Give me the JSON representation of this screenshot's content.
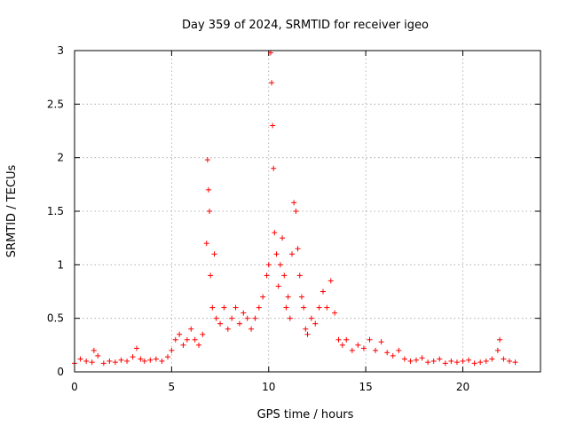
{
  "chart_data": {
    "type": "scatter",
    "title": "Day 359 of 2024, SRMTID for receiver igeo",
    "xlabel": "GPS time / hours",
    "ylabel": "SRMTID / TECUs",
    "xlim": [
      0,
      24
    ],
    "ylim": [
      0,
      3
    ],
    "xticks": [
      0,
      5,
      10,
      15,
      20
    ],
    "yticks": [
      0,
      0.5,
      1,
      1.5,
      2,
      2.5,
      3
    ],
    "xtick_labels": [
      "0",
      "5",
      "10",
      "15",
      "20"
    ],
    "ytick_labels": [
      "0",
      "0.5",
      "1",
      "1.5",
      "2",
      "2.5",
      "3"
    ],
    "grid": true,
    "marker": "+",
    "series": [
      {
        "name": "SRMTID",
        "color": "#ff0000",
        "x": [
          0.0,
          0.3,
          0.6,
          0.9,
          1.0,
          1.2,
          1.5,
          1.8,
          2.1,
          2.4,
          2.7,
          3.0,
          3.2,
          3.4,
          3.6,
          3.9,
          4.2,
          4.5,
          4.8,
          5.0,
          5.2,
          5.4,
          5.6,
          5.8,
          6.0,
          6.2,
          6.4,
          6.6,
          6.8,
          6.85,
          6.9,
          6.95,
          7.0,
          7.1,
          7.2,
          7.3,
          7.5,
          7.7,
          7.9,
          8.1,
          8.3,
          8.5,
          8.7,
          8.9,
          9.1,
          9.3,
          9.5,
          9.7,
          9.9,
          10.0,
          10.1,
          10.15,
          10.2,
          10.25,
          10.3,
          10.4,
          10.5,
          10.6,
          10.7,
          10.8,
          10.9,
          11.0,
          11.1,
          11.2,
          11.3,
          11.4,
          11.5,
          11.6,
          11.7,
          11.8,
          11.9,
          12.0,
          12.2,
          12.4,
          12.6,
          12.8,
          13.0,
          13.2,
          13.4,
          13.6,
          13.8,
          14.0,
          14.3,
          14.6,
          14.9,
          15.2,
          15.5,
          15.8,
          16.1,
          16.4,
          16.7,
          17.0,
          17.3,
          17.6,
          17.9,
          18.2,
          18.5,
          18.8,
          19.1,
          19.4,
          19.7,
          20.0,
          20.3,
          20.6,
          20.9,
          21.2,
          21.5,
          21.8,
          21.9,
          22.1,
          22.4,
          22.7
        ],
        "y": [
          0.08,
          0.12,
          0.1,
          0.09,
          0.2,
          0.15,
          0.08,
          0.1,
          0.09,
          0.11,
          0.1,
          0.14,
          0.22,
          0.12,
          0.1,
          0.11,
          0.12,
          0.1,
          0.14,
          0.2,
          0.3,
          0.35,
          0.25,
          0.3,
          0.4,
          0.3,
          0.25,
          0.35,
          1.2,
          1.98,
          1.7,
          1.5,
          0.9,
          0.6,
          1.1,
          0.5,
          0.45,
          0.6,
          0.4,
          0.5,
          0.6,
          0.45,
          0.55,
          0.5,
          0.4,
          0.5,
          0.6,
          0.7,
          0.9,
          1.0,
          2.98,
          2.7,
          2.3,
          1.9,
          1.3,
          1.1,
          0.8,
          1.0,
          1.25,
          0.9,
          0.6,
          0.7,
          0.5,
          1.1,
          1.58,
          1.5,
          1.15,
          0.9,
          0.7,
          0.6,
          0.4,
          0.35,
          0.5,
          0.45,
          0.6,
          0.75,
          0.6,
          0.85,
          0.55,
          0.3,
          0.25,
          0.3,
          0.2,
          0.25,
          0.22,
          0.3,
          0.2,
          0.28,
          0.18,
          0.15,
          0.2,
          0.12,
          0.1,
          0.11,
          0.13,
          0.09,
          0.1,
          0.12,
          0.08,
          0.1,
          0.09,
          0.1,
          0.11,
          0.08,
          0.09,
          0.1,
          0.12,
          0.2,
          0.3,
          0.12,
          0.1,
          0.09
        ]
      }
    ]
  }
}
